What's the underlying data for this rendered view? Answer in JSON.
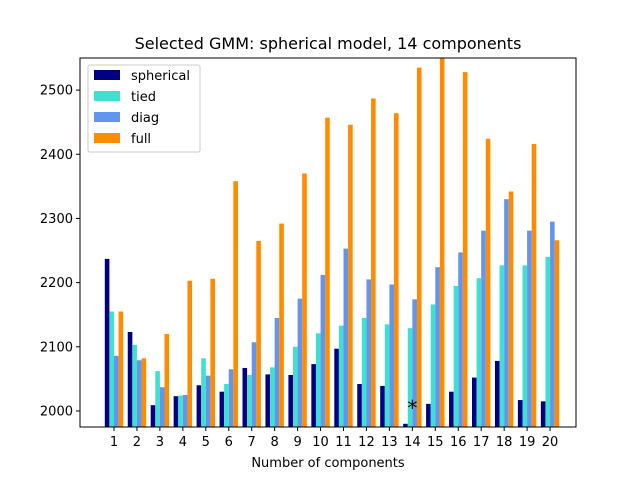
{
  "chart_data": {
    "type": "bar",
    "title": "Selected GMM: spherical model, 14 components",
    "xlabel": "Number of components",
    "ylabel": "",
    "ylim": [
      1975,
      2550
    ],
    "yticks": [
      2000,
      2100,
      2200,
      2300,
      2400,
      2500
    ],
    "categories": [
      "1",
      "2",
      "3",
      "4",
      "5",
      "6",
      "7",
      "8",
      "9",
      "10",
      "11",
      "12",
      "13",
      "14",
      "15",
      "16",
      "17",
      "18",
      "19",
      "20"
    ],
    "legend_position": "upper-left",
    "grid": false,
    "series": [
      {
        "name": "spherical",
        "color": "#000080",
        "values": [
          2237,
          2123,
          2009,
          2023,
          2040,
          2030,
          2067,
          2057,
          2056,
          2073,
          2097,
          2042,
          2039,
          1980,
          2011,
          2030,
          2052,
          2078,
          2017,
          2015
        ]
      },
      {
        "name": "tied",
        "color": "#40e0d0",
        "values": [
          2155,
          2103,
          2062,
          2024,
          2082,
          2042,
          2056,
          2068,
          2100,
          2121,
          2133,
          2145,
          2135,
          2129,
          2166,
          2195,
          2207,
          2227,
          2227,
          2240
        ]
      },
      {
        "name": "diag",
        "color": "#6495ed",
        "values": [
          2086,
          2079,
          2037,
          2025,
          2055,
          2065,
          2107,
          2145,
          2175,
          2212,
          2253,
          2205,
          2197,
          2174,
          2224,
          2247,
          2281,
          2330,
          2281,
          2295
        ]
      },
      {
        "name": "full",
        "color": "#ff8c00",
        "values": [
          2155,
          2082,
          2120,
          2203,
          2206,
          2358,
          2265,
          2292,
          2370,
          2457,
          2446,
          2487,
          2464,
          2535,
          2550,
          2528,
          2424,
          2342,
          2416,
          2266
        ]
      }
    ],
    "annotations": [
      {
        "text": "*",
        "category": "14",
        "y": 2011
      }
    ]
  }
}
